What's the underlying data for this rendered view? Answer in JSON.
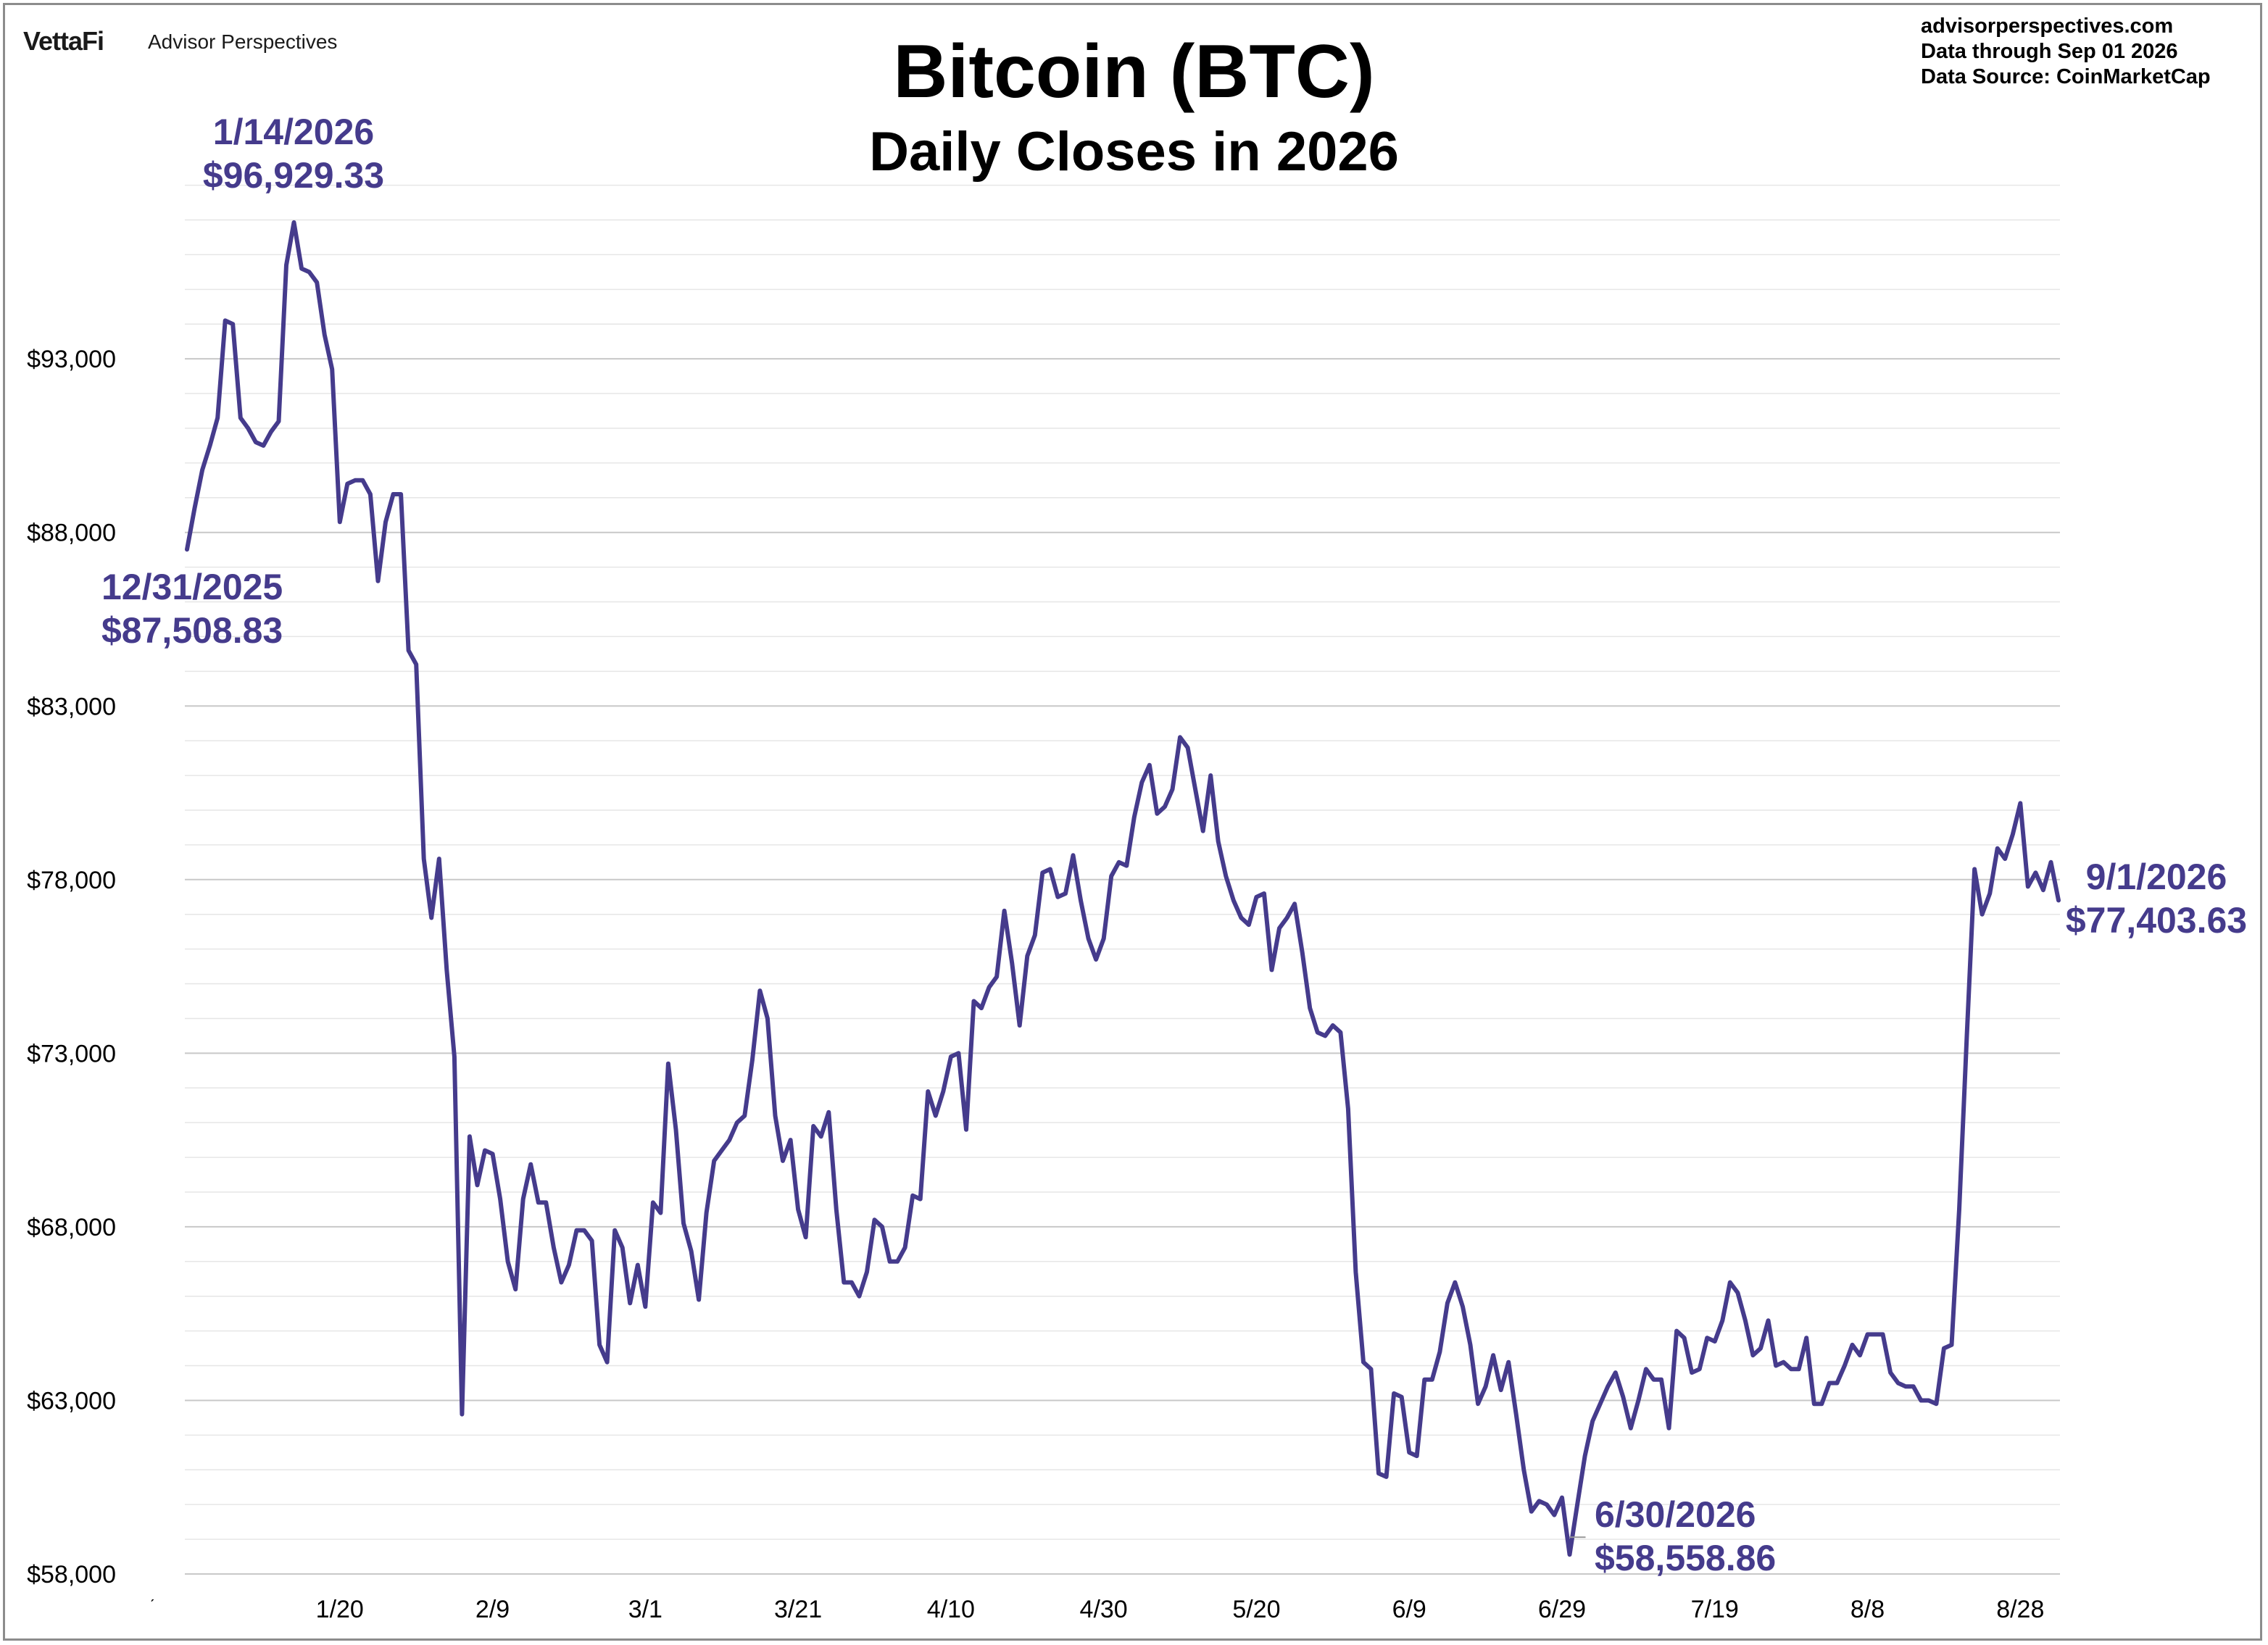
{
  "header": {
    "brand": "VettaFi",
    "brand_sub": "Advisor Perspectives",
    "site": "advisorperspectives.com",
    "data_through": "Data through  Sep 01 2026",
    "data_source": "Data Source:  CoinMarketCap"
  },
  "chart_data": {
    "type": "line",
    "title": "Bitcoin (BTC)",
    "subtitle": "Daily Closes in 2026",
    "xlabel": "",
    "ylabel": "",
    "ylim": [
      58000,
      98000
    ],
    "yticks": [
      58000,
      63000,
      68000,
      73000,
      78000,
      83000,
      88000,
      93000
    ],
    "ytick_labels": [
      "$58,000",
      "$63,000",
      "$68,000",
      "$73,000",
      "$78,000",
      "$83,000",
      "$88,000",
      "$93,000"
    ],
    "xtick_labels": [
      "1/20",
      "2/9",
      "3/1",
      "3/21",
      "4/10",
      "4/30",
      "5/20",
      "6/9",
      "6/29",
      "7/19",
      "8/8",
      "8/28"
    ],
    "xtick_day_index": [
      20,
      40,
      60,
      80,
      100,
      120,
      140,
      160,
      180,
      200,
      220,
      240
    ],
    "grid": true,
    "line_color": "#453b8c",
    "annotation_color": "#453b8c",
    "start_label": "12/31/2025",
    "series": [
      {
        "values": [
          87509,
          88700,
          89800,
          90500,
          91300,
          94100,
          94000,
          91300,
          91000,
          90600,
          90500,
          90900,
          91200,
          95700,
          96929,
          95600,
          95500,
          95200,
          93700,
          92700,
          88300,
          89400,
          89500,
          89500,
          89100,
          86600,
          88300,
          89100,
          89100,
          84600,
          84200,
          78600,
          76900,
          78600,
          75400,
          72900,
          62600,
          70600,
          69200,
          70200,
          70100,
          68800,
          67000,
          66200,
          68800,
          69800,
          68700,
          68700,
          67400,
          66400,
          66900,
          67900,
          67900,
          67600,
          64600,
          64100,
          67900,
          67400,
          65800,
          66900,
          65700,
          68700,
          68400,
          72700,
          70800,
          68100,
          67300,
          65900,
          68400,
          69900,
          70200,
          70500,
          71000,
          71200,
          72800,
          74800,
          74000,
          71200,
          69900,
          70500,
          68500,
          67700,
          70900,
          70600,
          71300,
          68500,
          66400,
          66400,
          66000,
          66700,
          68200,
          68000,
          67000,
          67000,
          67400,
          68900,
          68800,
          71900,
          71200,
          71900,
          72900,
          73000,
          70800,
          74500,
          74300,
          74900,
          75200,
          77100,
          75600,
          73800,
          75800,
          76400,
          78200,
          78300,
          77500,
          77600,
          78700,
          77400,
          76300,
          75700,
          76300,
          78100,
          78500,
          78400,
          79800,
          80800,
          81300,
          79900,
          80100,
          80600,
          82100,
          81800,
          80600,
          79400,
          81000,
          79100,
          78100,
          77400,
          76900,
          76700,
          77500,
          77600,
          75400,
          76600,
          76900,
          77300,
          75900,
          74300,
          73600,
          73500,
          73800,
          73600,
          71400,
          66700,
          64100,
          63900,
          60900,
          60800,
          63200,
          63100,
          61500,
          61400,
          63600,
          63600,
          64400,
          65800,
          66400,
          65700,
          64600,
          62900,
          63400,
          64300,
          63300,
          64100,
          62600,
          61000,
          59800,
          60100,
          60000,
          59700,
          60200,
          58559,
          60000,
          61400,
          62400,
          62900,
          63400,
          63800,
          63100,
          62200,
          63000,
          63900,
          63600,
          63600,
          62200,
          65000,
          64800,
          63800,
          63900,
          64800,
          64700,
          65300,
          66400,
          66100,
          65300,
          64300,
          64500,
          65300,
          64000,
          64100,
          63900,
          63900,
          64800,
          62900,
          62900,
          63500,
          63500,
          64000,
          64600,
          64300,
          64900,
          64900,
          64900,
          63800,
          63500,
          63400,
          63400,
          63000,
          63000,
          62900,
          64500,
          64600,
          68500,
          73500,
          78300,
          77000,
          77600,
          78900,
          78600,
          79300,
          80200,
          77800,
          78200,
          77700,
          78500,
          77404
        ]
      }
    ],
    "annotations": [
      {
        "date": "12/31/2025",
        "value_label": "$87,508.83",
        "value": 87508.83
      },
      {
        "date": "1/14/2026",
        "value_label": "$96,929.33",
        "value": 96929.33
      },
      {
        "date": "6/30/2026",
        "value_label": "$58,558.86",
        "value": 58558.86
      },
      {
        "date": "9/1/2026",
        "value_label": "$77,403.63",
        "value": 77403.63
      }
    ]
  }
}
